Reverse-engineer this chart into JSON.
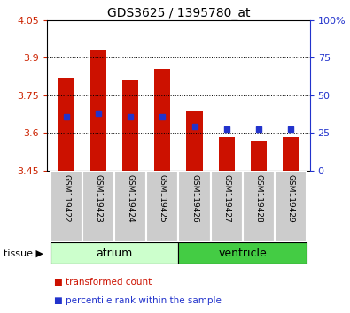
{
  "title": "GDS3625 / 1395780_at",
  "samples": [
    "GSM119422",
    "GSM119423",
    "GSM119424",
    "GSM119425",
    "GSM119426",
    "GSM119427",
    "GSM119428",
    "GSM119429"
  ],
  "bar_tops": [
    3.82,
    3.93,
    3.81,
    3.855,
    3.69,
    3.585,
    3.565,
    3.583
  ],
  "bar_bottom": 3.45,
  "blue_dots_y": [
    3.665,
    3.68,
    3.665,
    3.665,
    3.625,
    3.615,
    3.615,
    3.615
  ],
  "ylim_left": [
    3.45,
    4.05
  ],
  "ylim_right": [
    0,
    100
  ],
  "yticks_left": [
    3.45,
    3.6,
    3.75,
    3.9,
    4.05
  ],
  "ytick_labels_left": [
    "3.45",
    "3.6",
    "3.75",
    "3.9",
    "4.05"
  ],
  "yticks_right": [
    0,
    25,
    50,
    75,
    100
  ],
  "ytick_labels_right": [
    "0",
    "25",
    "50",
    "75",
    "100%"
  ],
  "hlines": [
    3.6,
    3.75,
    3.9
  ],
  "tissue_groups": [
    {
      "label": "atrium",
      "start": 0,
      "end": 3,
      "light_color": "#ccffcc",
      "dark_color": "#ccffcc"
    },
    {
      "label": "ventricle",
      "start": 4,
      "end": 7,
      "light_color": "#55dd55",
      "dark_color": "#55dd55"
    }
  ],
  "bar_color": "#cc1100",
  "dot_color": "#2233cc",
  "left_tick_color": "#cc2200",
  "right_tick_color": "#2233cc",
  "sample_box_color": "#cccccc",
  "atrium_color": "#ccffcc",
  "ventricle_color": "#44cc44",
  "legend_bar_label": "transformed count",
  "legend_dot_label": "percentile rank within the sample"
}
